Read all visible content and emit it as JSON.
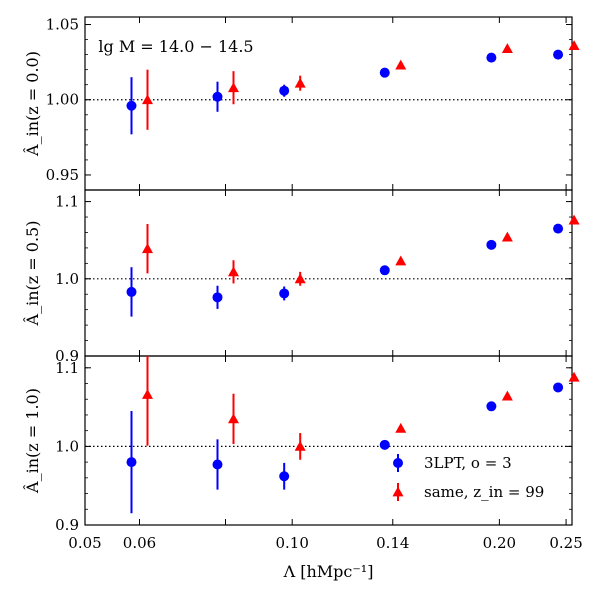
{
  "chart_data": {
    "type": "scatter",
    "xlabel": "Λ [hMpc⁻¹]",
    "xlim": [
      0.05,
      0.255
    ],
    "xticks": [
      0.05,
      0.06,
      0.08,
      0.1,
      0.14,
      0.2,
      0.25
    ],
    "xtick_labels": [
      "0.05",
      "0.06",
      "",
      "0.10",
      "0.14",
      "0.20",
      "0.25"
    ],
    "x_positions": [
      0.06,
      0.08,
      0.1,
      0.14,
      0.2,
      0.25
    ],
    "annotation": "lg M = 14.0 − 14.5",
    "legend": {
      "placement": "lower-right",
      "entries": [
        {
          "label": "3LPT, o = 3",
          "color": "#0000ff",
          "marker": "circle"
        },
        {
          "label": "same, z_in = 99",
          "color": "#ff0000",
          "marker": "triangle"
        }
      ]
    },
    "panels": [
      {
        "ylabel": "Â_in(z = 0.0)",
        "ylim": [
          0.94,
          1.055
        ],
        "yticks": [
          0.95,
          1.0,
          1.05
        ],
        "ytick_labels": [
          "0.95",
          "1.00",
          "1.05"
        ],
        "reference": 1.0,
        "series": [
          {
            "name": "3LPT, o = 3",
            "values": [
              0.996,
              1.002,
              1.006,
              1.018,
              1.028,
              1.03
            ],
            "errors": [
              0.019,
              0.01,
              0.004,
              0.002,
              0.001,
              0.001
            ]
          },
          {
            "name": "same, z_in = 99",
            "values": [
              1.0,
              1.008,
              1.011,
              1.023,
              1.034,
              1.036
            ],
            "errors": [
              0.02,
              0.011,
              0.005,
              0.002,
              0.001,
              0.001
            ]
          }
        ]
      },
      {
        "ylabel": "Â_in(z = 0.5)",
        "ylim": [
          0.9,
          1.115
        ],
        "yticks": [
          0.9,
          1.0,
          1.1
        ],
        "ytick_labels": [
          "0.9",
          "1.0",
          "1.1"
        ],
        "reference": 1.0,
        "series": [
          {
            "name": "3LPT, o = 3",
            "values": [
              0.983,
              0.976,
              0.981,
              1.011,
              1.044,
              1.065
            ],
            "errors": [
              0.032,
              0.015,
              0.009,
              0.004,
              0.002,
              0.002
            ]
          },
          {
            "name": "same, z_in = 99",
            "values": [
              1.039,
              1.009,
              1.0,
              1.023,
              1.054,
              1.076
            ],
            "errors": [
              0.032,
              0.015,
              0.009,
              0.004,
              0.002,
              0.002
            ]
          }
        ]
      },
      {
        "ylabel": "Â_in(z = 1.0)",
        "ylim": [
          0.9,
          1.115
        ],
        "yticks": [
          0.9,
          1.0,
          1.1
        ],
        "ytick_labels": [
          "0.9",
          "1.0",
          "1.1"
        ],
        "reference": 1.0,
        "series": [
          {
            "name": "3LPT, o = 3",
            "values": [
              0.98,
              0.977,
              0.962,
              1.002,
              1.051,
              1.075
            ],
            "errors": [
              0.065,
              0.032,
              0.017,
              0.004,
              0.002,
              0.002
            ]
          },
          {
            "name": "same, z_in = 99",
            "values": [
              1.066,
              1.035,
              1.0,
              1.023,
              1.064,
              1.088
            ],
            "errors": [
              0.065,
              0.032,
              0.017,
              0.004,
              0.002,
              0.002
            ]
          }
        ]
      }
    ]
  }
}
